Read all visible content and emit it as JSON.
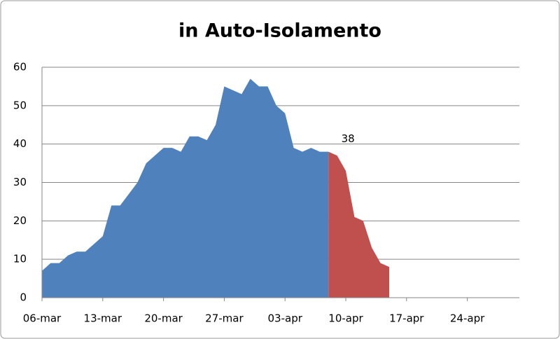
{
  "chart_data": {
    "type": "area",
    "title": "in Auto-Isolamento",
    "categories": [
      "06-mar",
      null,
      null,
      null,
      null,
      null,
      null,
      "13-mar",
      null,
      null,
      null,
      null,
      null,
      null,
      "20-mar",
      null,
      null,
      null,
      null,
      null,
      null,
      "27-mar",
      null,
      null,
      null,
      null,
      null,
      null,
      "03-apr",
      null,
      null,
      null,
      null,
      null,
      null,
      "10-apr",
      null,
      null,
      null,
      null,
      null,
      null,
      "17-apr",
      null,
      null,
      null,
      null,
      null,
      null,
      "24-apr",
      null,
      null,
      null,
      null,
      null,
      null
    ],
    "series": [
      {
        "color": "#4f81bd",
        "values": [
          7,
          9,
          9,
          11,
          12,
          12,
          14,
          16,
          24,
          24,
          27,
          30,
          35,
          37,
          39,
          39,
          38,
          42,
          42,
          41,
          45,
          55,
          54,
          53,
          57,
          55,
          55,
          50,
          48,
          39,
          38,
          39,
          38,
          38,
          null,
          null,
          null,
          null,
          null,
          null,
          null,
          null,
          null,
          null,
          null,
          null,
          null,
          null,
          null,
          null,
          null,
          null,
          null,
          null,
          null,
          null
        ]
      },
      {
        "color": "#c0504d",
        "values": [
          null,
          null,
          null,
          null,
          null,
          null,
          null,
          null,
          null,
          null,
          null,
          null,
          null,
          null,
          null,
          null,
          null,
          null,
          null,
          null,
          null,
          null,
          null,
          null,
          null,
          null,
          null,
          null,
          null,
          null,
          null,
          null,
          null,
          38,
          37,
          33,
          21,
          20,
          13,
          9,
          8,
          null,
          null,
          null,
          null,
          null,
          null,
          null,
          null,
          null,
          null,
          null,
          null,
          null,
          null,
          null
        ]
      }
    ],
    "data_label": {
      "series": 1,
      "index": 33
    },
    "ylim": [
      0,
      60
    ],
    "yticks": [
      0,
      10,
      20,
      30,
      40,
      50,
      60
    ],
    "grid": true
  }
}
